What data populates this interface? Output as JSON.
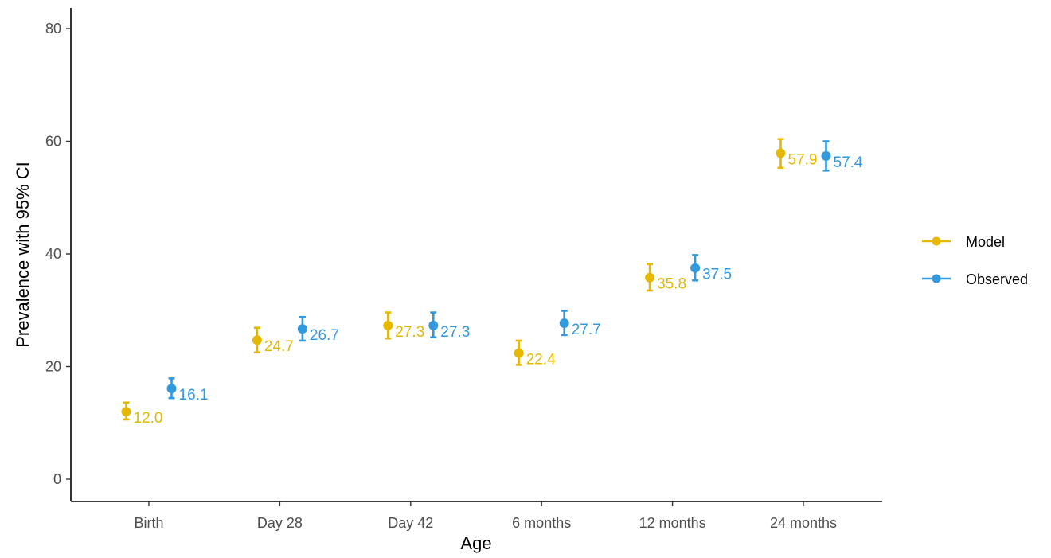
{
  "chart_data": {
    "type": "scatter",
    "title": "",
    "xlabel": "Age",
    "ylabel": "Prevalence with 95% CI",
    "categories": [
      "Birth",
      "Day 28",
      "Day 42",
      "6 months",
      "12 months",
      "24 months"
    ],
    "ylim": [
      0,
      80
    ],
    "yticks": [
      0,
      20,
      40,
      60,
      80
    ],
    "ytick_labels": [
      "0",
      "20",
      "40",
      "60",
      "80"
    ],
    "grid": false,
    "legend_position": "right",
    "series": [
      {
        "name": "Model",
        "color": "#E6B800",
        "values": [
          12.0,
          24.7,
          27.3,
          22.4,
          35.8,
          57.9
        ],
        "lower": [
          10.6,
          22.5,
          25.0,
          20.3,
          33.5,
          55.3
        ],
        "upper": [
          13.6,
          26.9,
          29.6,
          24.6,
          38.2,
          60.4
        ],
        "labels": [
          "12.0",
          "24.7",
          "27.3",
          "22.4",
          "35.8",
          "57.9"
        ]
      },
      {
        "name": "Observed",
        "color": "#3399DD",
        "values": [
          16.1,
          26.7,
          27.3,
          27.7,
          37.5,
          57.4
        ],
        "lower": [
          14.4,
          24.6,
          25.2,
          25.6,
          35.3,
          54.8
        ],
        "upper": [
          17.9,
          28.8,
          29.6,
          29.9,
          39.8,
          60.0
        ],
        "labels": [
          "16.1",
          "26.7",
          "27.3",
          "27.7",
          "37.5",
          "57.4"
        ]
      }
    ]
  }
}
